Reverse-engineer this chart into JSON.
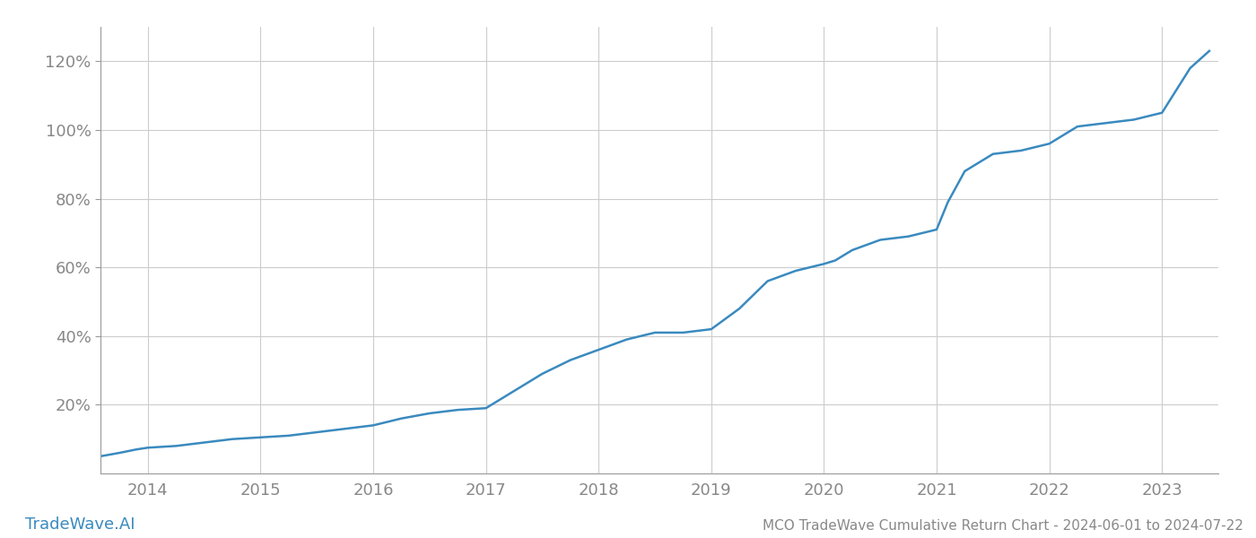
{
  "title": "MCO TradeWave Cumulative Return Chart - 2024-06-01 to 2024-07-22",
  "watermark": "TradeWave.AI",
  "line_color": "#3a8abf",
  "line_width": 1.8,
  "background_color": "#ffffff",
  "grid_color": "#cccccc",
  "x_years": [
    2014,
    2015,
    2016,
    2017,
    2018,
    2019,
    2020,
    2021,
    2022,
    2023
  ],
  "data_x": [
    2013.58,
    2013.75,
    2013.9,
    2014.0,
    2014.25,
    2014.5,
    2014.75,
    2015.0,
    2015.25,
    2015.5,
    2015.75,
    2016.0,
    2016.25,
    2016.5,
    2016.75,
    2017.0,
    2017.25,
    2017.5,
    2017.75,
    2018.0,
    2018.25,
    2018.5,
    2018.75,
    2019.0,
    2019.25,
    2019.5,
    2019.75,
    2020.0,
    2020.1,
    2020.25,
    2020.5,
    2020.75,
    2021.0,
    2021.1,
    2021.25,
    2021.5,
    2021.75,
    2022.0,
    2022.25,
    2022.5,
    2022.75,
    2023.0,
    2023.25,
    2023.42
  ],
  "data_y": [
    5,
    6,
    7,
    7.5,
    8,
    9,
    10,
    10.5,
    11,
    12,
    13,
    14,
    16,
    17.5,
    18.5,
    19,
    24,
    29,
    33,
    36,
    39,
    41,
    41,
    42,
    48,
    56,
    59,
    61,
    62,
    65,
    68,
    69,
    71,
    79,
    88,
    93,
    94,
    96,
    101,
    102,
    103,
    105,
    118,
    123
  ],
  "ylim": [
    0,
    130
  ],
  "xlim": [
    2013.58,
    2023.5
  ],
  "yticks": [
    20,
    40,
    60,
    80,
    100,
    120
  ],
  "ytick_labels": [
    "20%",
    "40%",
    "60%",
    "80%",
    "100%",
    "120%"
  ],
  "text_color": "#888888",
  "title_fontsize": 11,
  "tick_fontsize": 13,
  "watermark_fontsize": 13,
  "spine_color": "#999999"
}
